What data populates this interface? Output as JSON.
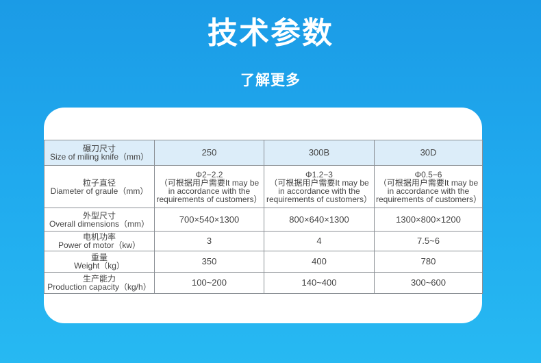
{
  "title": "技术参数",
  "subtitle": "了解更多",
  "table": {
    "header": {
      "zh": "碾刀尺寸",
      "en": "Size of miling knife（mm）",
      "values": [
        "250",
        "300B",
        "30D"
      ]
    },
    "rows": [
      {
        "zh": "粒子直径",
        "en": "Diameter of graule（mm）",
        "values": [
          {
            "main": "Φ2−2.2",
            "note": "（可根据用户需要It may be in accordance with the requirements of customers）"
          },
          {
            "main": "Φ1.2−3",
            "note": "（可根据用户需要It may be in accordance with the requirements of customers）"
          },
          {
            "main": "Φ0.5−6",
            "note": "（可根据用户需要It may be in accordance with the requirements of customers）"
          }
        ]
      },
      {
        "zh": "外型尺寸",
        "en": "Overall dimensions（mm）",
        "values": [
          "700×540×1300",
          "800×640×1300",
          "1300×800×1200"
        ]
      },
      {
        "zh": "电机功率",
        "en": "Power of motor（kw）",
        "values": [
          "3",
          "4",
          "7.5~6"
        ]
      },
      {
        "zh": "重量",
        "en": "Weight（kg）",
        "values": [
          "350",
          "400",
          "780"
        ]
      },
      {
        "zh": "生产能力",
        "en": "Production capacity（kg/h）",
        "values": [
          "100~200",
          "140~400",
          "300~600"
        ]
      }
    ]
  }
}
